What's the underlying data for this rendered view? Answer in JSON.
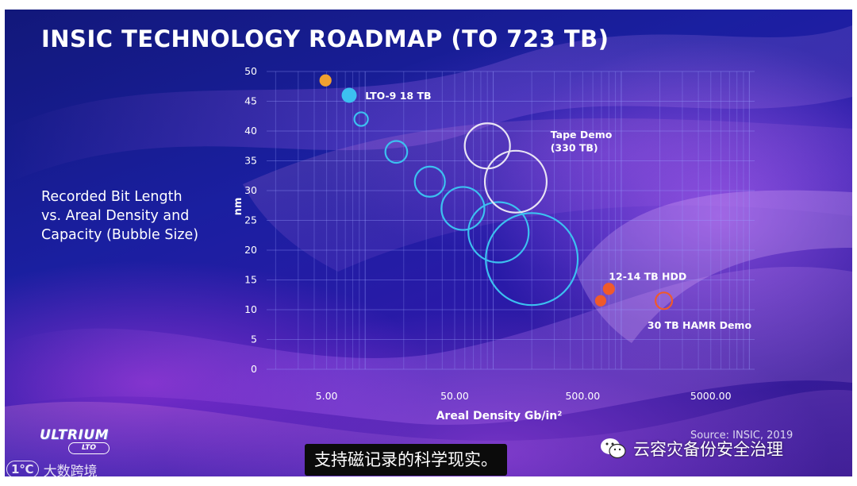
{
  "slide_title": "INSIC TECHNOLOGY ROADMAP (TO 723 TB)",
  "side_caption": [
    "Recorded Bit Length",
    "vs. Areal Density and",
    "Capacity (Bubble Size)"
  ],
  "source": "Source: INSIC, 2019",
  "logo": {
    "main": "ULTRIUM",
    "sub": "LTO"
  },
  "subtitle": "支持磁记录的科学现实。",
  "watermarks": {
    "left_mark": "1℃",
    "left_text": "大数跨境",
    "right_text": "云容灾备份安全治理",
    "right_icon": "wechat-icon"
  },
  "colors": {
    "tape_bubble": "#3cc0f0",
    "tape_demo_bubble": "#e8e4f4",
    "hdd_bubble": "#f05a2a",
    "early_point": "#f0a030",
    "text": "#ffffff"
  },
  "chart_data": {
    "type": "scatter",
    "title": "",
    "xlabel": "Areal Density Gb/in²",
    "ylabel": "nm",
    "x_scale": "log",
    "xlim": [
      1.7,
      11000
    ],
    "ylim": [
      0,
      50
    ],
    "x_ticks": [
      {
        "value": 5,
        "label": "5.00"
      },
      {
        "value": 50,
        "label": "50.00"
      },
      {
        "value": 500,
        "label": "500.00"
      },
      {
        "value": 5000,
        "label": "5000.00"
      }
    ],
    "y_ticks": [
      0,
      5,
      10,
      15,
      20,
      25,
      30,
      35,
      40,
      45,
      50
    ],
    "grid": true,
    "series": [
      {
        "group": "early",
        "filled": true,
        "color": "#f0a030",
        "points": [
          {
            "x": 4.9,
            "y": 48.5,
            "size": 0.8
          }
        ]
      },
      {
        "group": "lto",
        "filled": true,
        "color": "#3cc0f0",
        "points": [
          {
            "x": 7.5,
            "y": 46,
            "size": 1.0
          }
        ]
      },
      {
        "group": "tape-roadmap",
        "filled": false,
        "color": "#3cc0f0",
        "points": [
          {
            "x": 9.3,
            "y": 42,
            "size": 0.9
          },
          {
            "x": 17.5,
            "y": 36.5,
            "size": 1.45
          },
          {
            "x": 32,
            "y": 31.5,
            "size": 2.0
          },
          {
            "x": 58,
            "y": 27,
            "size": 2.85
          },
          {
            "x": 110,
            "y": 23,
            "size": 4.0
          },
          {
            "x": 200,
            "y": 18.5,
            "size": 6.1
          }
        ]
      },
      {
        "group": "tape-demo",
        "filled": false,
        "color": "#e8e4f4",
        "points": [
          {
            "x": 90,
            "y": 37.5,
            "size": 3.0
          },
          {
            "x": 150,
            "y": 31.5,
            "size": 4.1
          }
        ]
      },
      {
        "group": "hdd",
        "filled": true,
        "color": "#f05a2a",
        "points": [
          {
            "x": 800,
            "y": 13.5,
            "size": 0.8
          },
          {
            "x": 690,
            "y": 11.5,
            "size": 0.75
          }
        ]
      },
      {
        "group": "hamr",
        "filled": false,
        "color": "#f05a2a",
        "points": [
          {
            "x": 2150,
            "y": 11.5,
            "size": 1.1
          }
        ]
      }
    ],
    "annotations": [
      {
        "text": "LTO-9 18 TB",
        "x": 10,
        "y": 46
      },
      {
        "text": "Tape Demo",
        "x": 280,
        "y": 39.5
      },
      {
        "text": "(330 TB)",
        "x": 280,
        "y": 37.3
      },
      {
        "text": "12-14 TB HDD",
        "x": 800,
        "y": 15.7
      },
      {
        "text": "30 TB HAMR Demo",
        "x": 1600,
        "y": 7.5
      }
    ]
  }
}
